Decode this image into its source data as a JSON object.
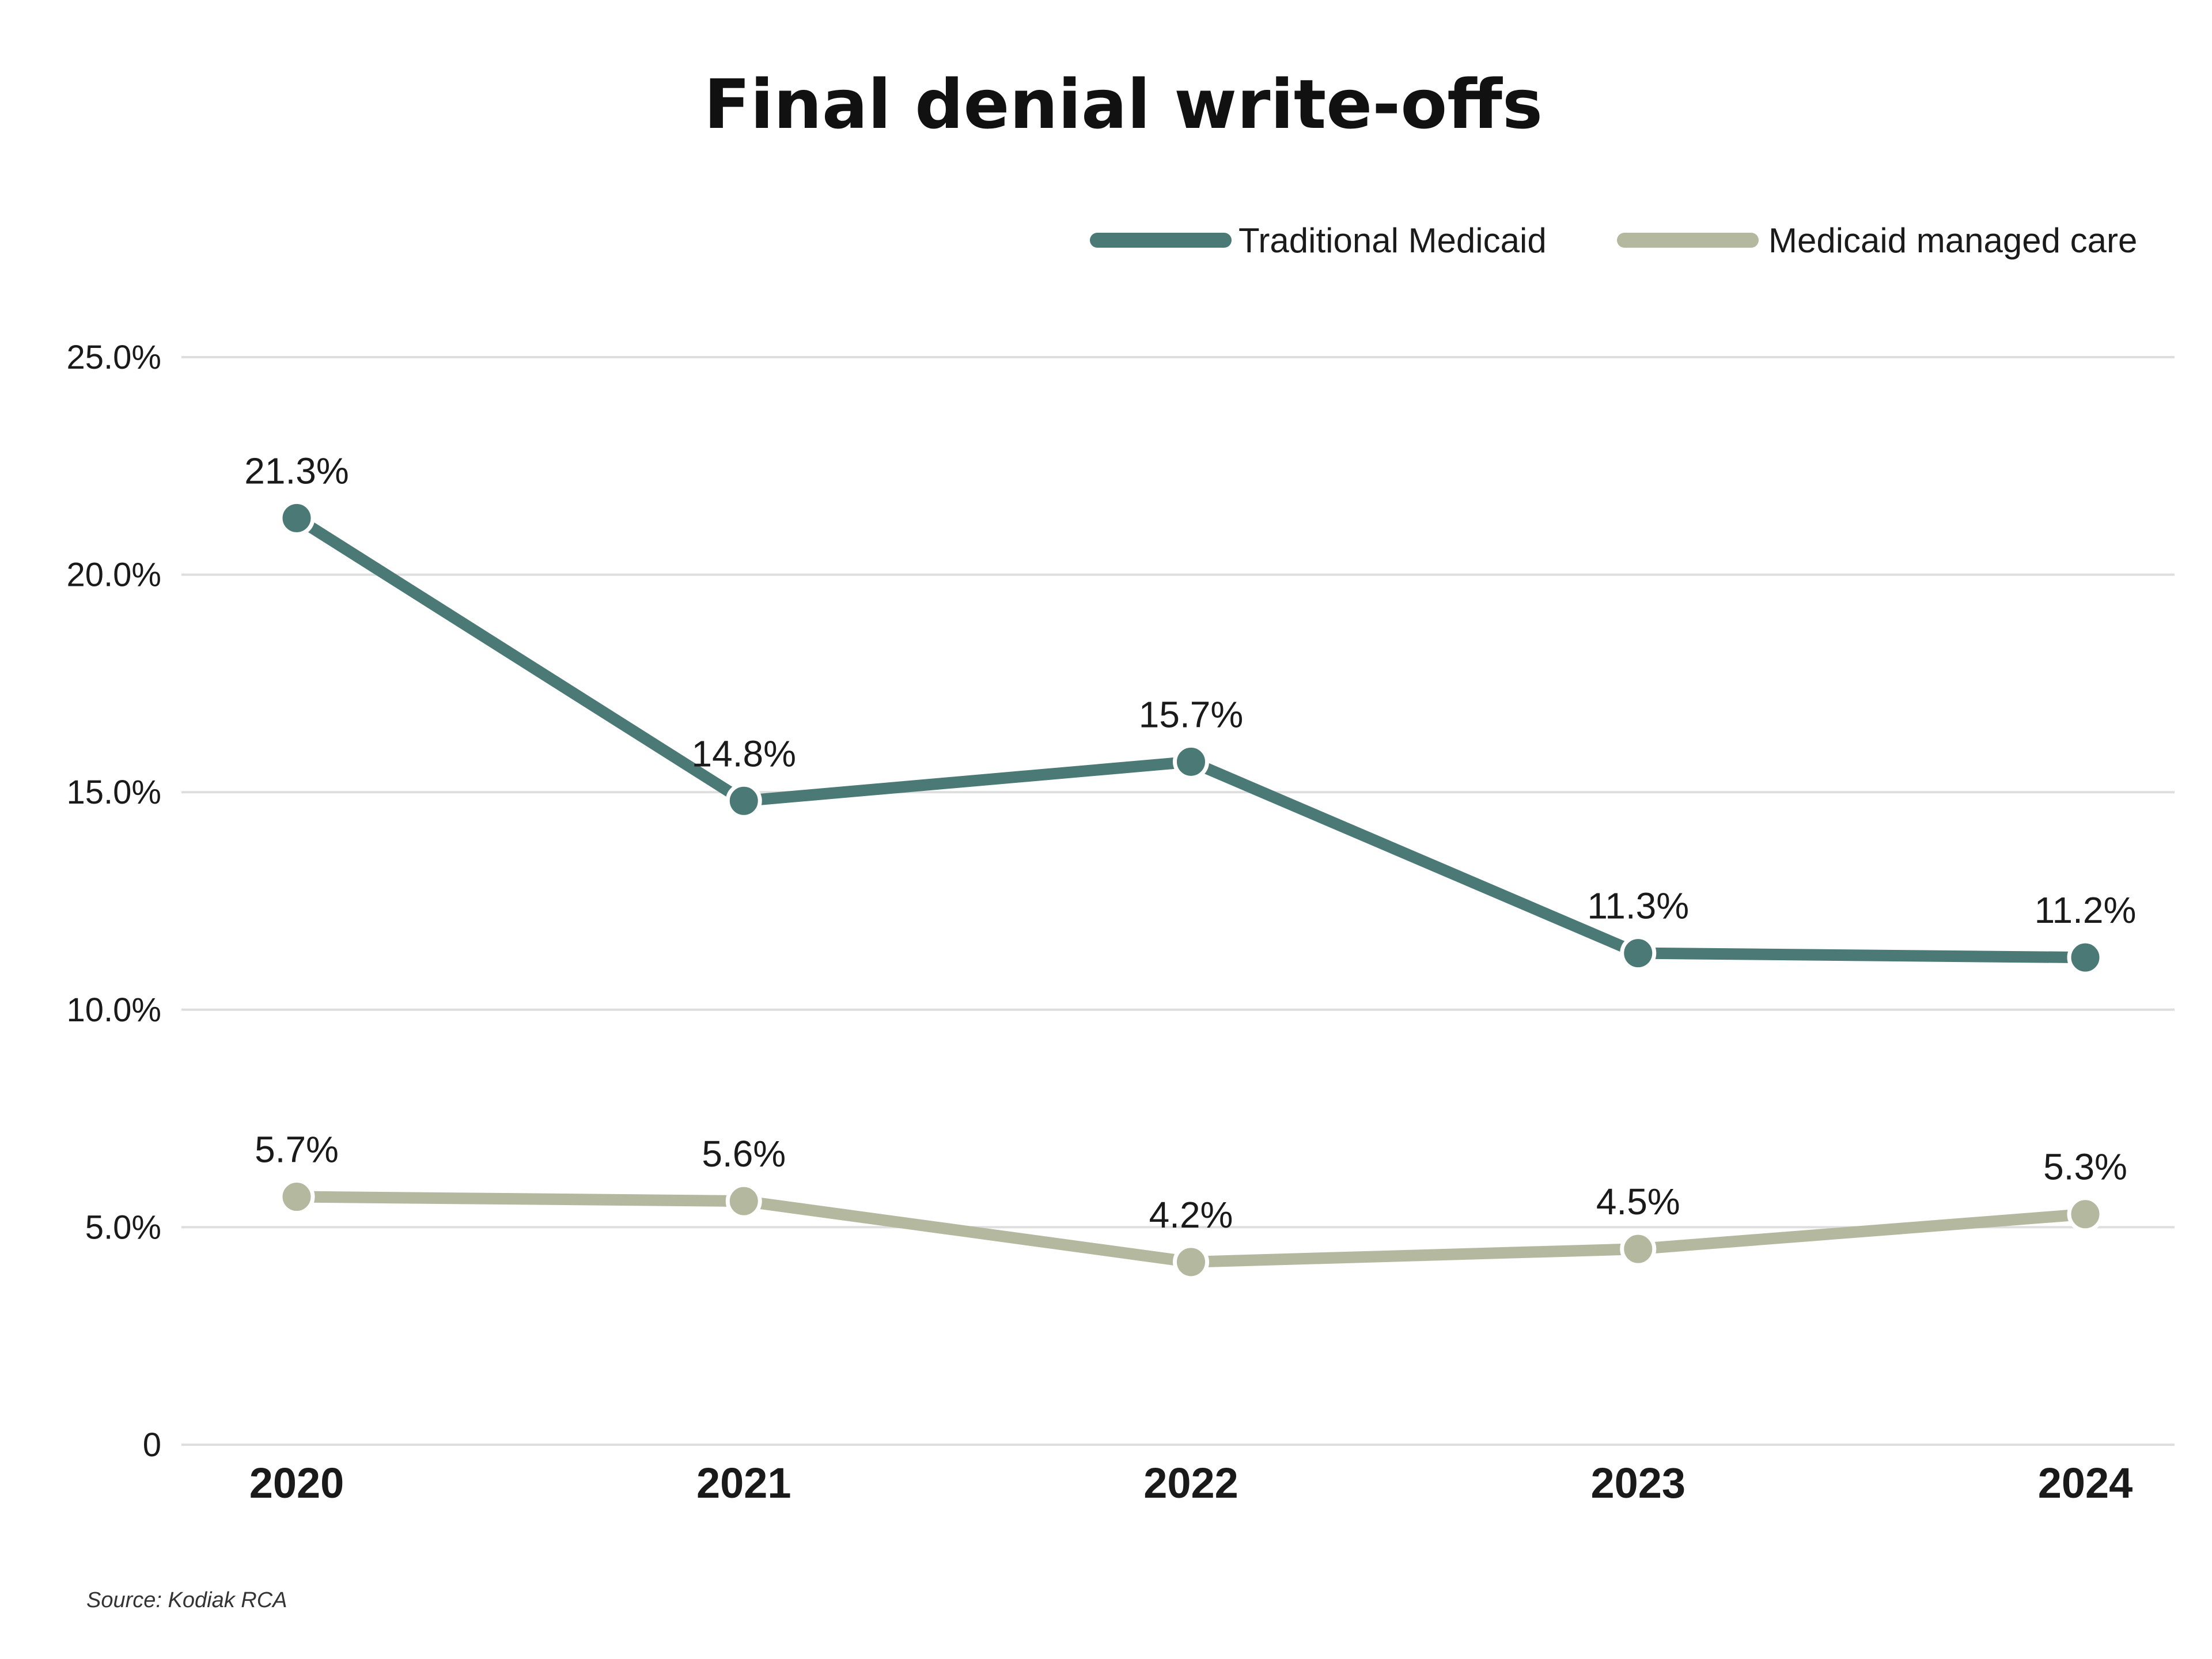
{
  "chart_data": {
    "type": "line",
    "title": "Final denial write-offs",
    "source": "Source: Kodiak RCA",
    "categories": [
      "2020",
      "2021",
      "2022",
      "2023",
      "2024"
    ],
    "ylim": [
      0,
      25
    ],
    "yticks": [
      {
        "value": 0,
        "label": "0"
      },
      {
        "value": 5,
        "label": "5.0%"
      },
      {
        "value": 10,
        "label": "10.0%"
      },
      {
        "value": 15,
        "label": "15.0%"
      },
      {
        "value": 20,
        "label": "20.0%"
      },
      {
        "value": 25,
        "label": "25.0%"
      }
    ],
    "grid": true,
    "legend_position": "top-right",
    "series": [
      {
        "name": "Traditional Medicaid",
        "color": "#4b7a76",
        "values": [
          21.3,
          14.8,
          15.7,
          11.3,
          11.2
        ],
        "labels": [
          "21.3%",
          "14.8%",
          "15.7%",
          "11.3%",
          "11.2%"
        ]
      },
      {
        "name": "Medicaid managed care",
        "color": "#b3b89f",
        "values": [
          5.7,
          5.6,
          4.2,
          4.5,
          5.3
        ],
        "labels": [
          "5.7%",
          "5.6%",
          "4.2%",
          "4.5%",
          "5.3%"
        ]
      }
    ]
  }
}
